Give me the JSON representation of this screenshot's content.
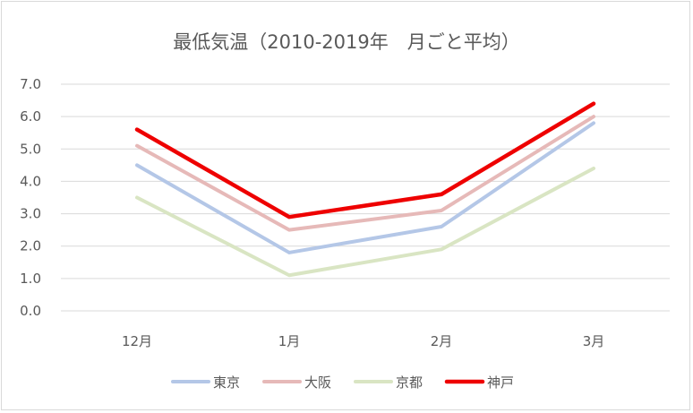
{
  "chart_data": {
    "type": "line",
    "title": "最低気温（2010-2019年　月ごと平均）",
    "categories": [
      "12月",
      "1月",
      "2月",
      "3月"
    ],
    "ylim": [
      0,
      7
    ],
    "yticks": [
      "0.0",
      "1.0",
      "2.0",
      "3.0",
      "4.0",
      "5.0",
      "6.0",
      "7.0"
    ],
    "grid": true,
    "legend_position": "bottom",
    "series": [
      {
        "name": "東京",
        "color": "#b4c7e7",
        "values": [
          4.5,
          1.8,
          2.6,
          5.8
        ]
      },
      {
        "name": "大阪",
        "color": "#e6b9b8",
        "values": [
          5.1,
          2.5,
          3.1,
          6.0
        ]
      },
      {
        "name": "京都",
        "color": "#d9e5c3",
        "values": [
          3.5,
          1.1,
          1.9,
          4.4
        ]
      },
      {
        "name": "神戸",
        "color": "#ee0000",
        "values": [
          5.6,
          2.9,
          3.6,
          6.4
        ]
      }
    ]
  }
}
